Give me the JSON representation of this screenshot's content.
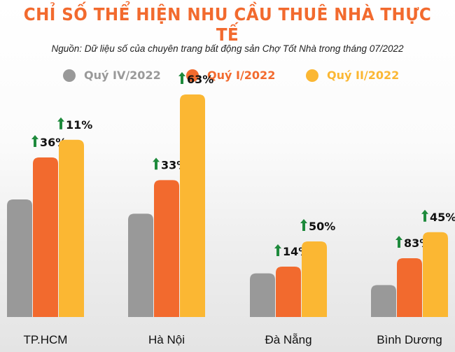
{
  "chart_data": {
    "type": "bar",
    "title": "CHỈ SỐ THỂ HIỆN NHU CẦU THUÊ NHÀ THỰC TẾ",
    "subtitle": "Nguồn: Dữ liệu số của chuyên trang bất động sản Chợ Tốt Nhà trong tháng 07/2022",
    "categories": [
      "TP.HCM",
      "Hà Nội",
      "Đà Nẵng",
      "Bình Dương"
    ],
    "series": [
      {
        "name": "Quý IV/2022",
        "color": "#999999",
        "values": [
          140,
          123,
          52,
          38
        ],
        "growth": [
          "",
          "",
          "",
          ""
        ]
      },
      {
        "name": "Quý I/2022",
        "color": "#f26a2e",
        "values": [
          190,
          163,
          60,
          70
        ],
        "growth": [
          "36%",
          "33%",
          "14%",
          "83%"
        ]
      },
      {
        "name": "Quý II/2022",
        "color": "#fbb733",
        "values": [
          211,
          265,
          90,
          101
        ],
        "growth": [
          "11%",
          "63%",
          "50%",
          "45%"
        ]
      }
    ],
    "ylim": [
      0,
      300
    ],
    "legend_position": "top",
    "arrow_color": "#1e8a3c",
    "grid": false
  }
}
